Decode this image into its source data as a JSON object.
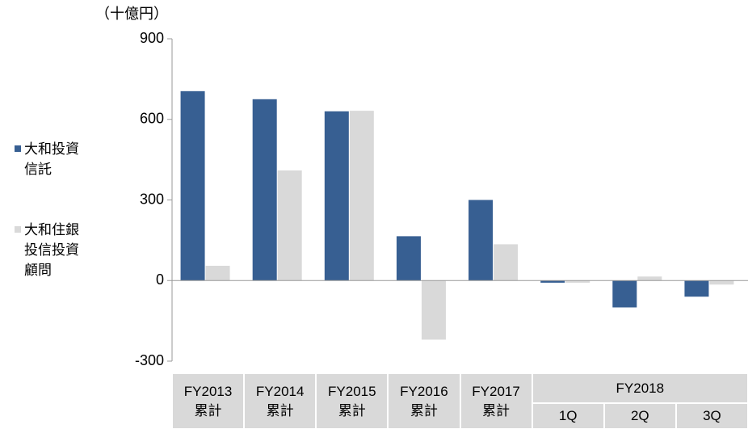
{
  "chart_data": {
    "type": "bar",
    "unit_label": "（十億円）",
    "categories": [
      "FY2013\n累計",
      "FY2014\n累計",
      "FY2015\n累計",
      "FY2016\n累計",
      "FY2017\n累計",
      "1Q",
      "2Q",
      "3Q"
    ],
    "category_group": "FY2018",
    "series": [
      {
        "name": "大和投資信託",
        "color": "#375f92",
        "values": [
          705,
          675,
          630,
          165,
          300,
          -8,
          -100,
          -60
        ]
      },
      {
        "name": "大和住銀投信投資顧問",
        "color": "#d9d9d9",
        "values": [
          55,
          410,
          632,
          -220,
          135,
          -8,
          15,
          -15
        ]
      }
    ],
    "ylim": [
      -300,
      900
    ],
    "yticks": [
      -300,
      0,
      300,
      600,
      900
    ]
  }
}
